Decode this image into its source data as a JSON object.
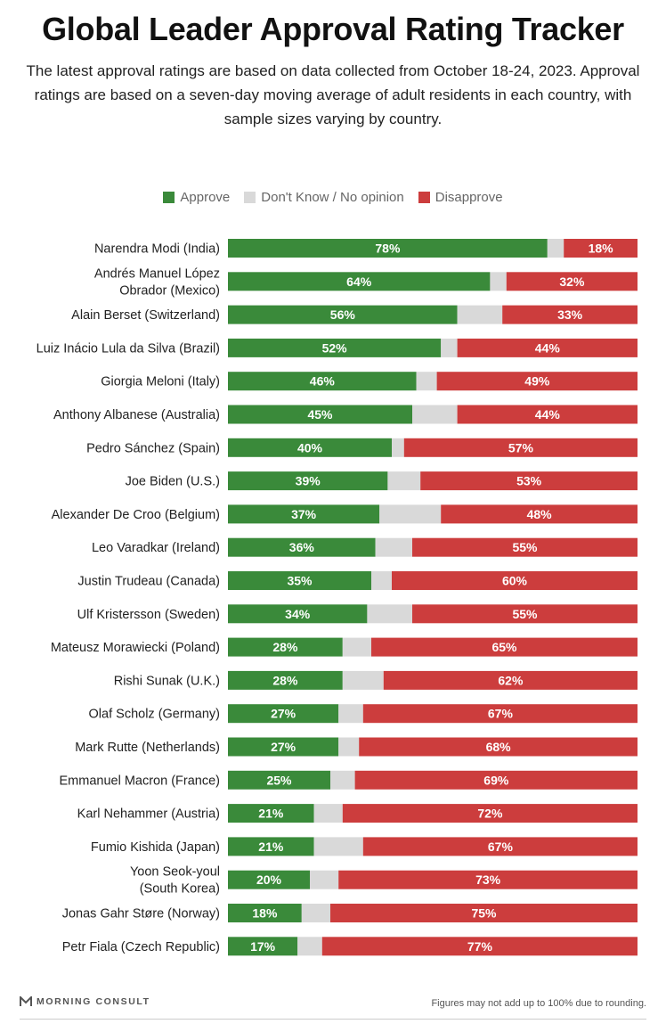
{
  "title": "Global Leader Approval Rating Tracker",
  "subtitle": "The latest approval ratings are based on data collected from October 18-24, 2023. Approval ratings are based on a seven-day moving average of adult residents in each country, with sample sizes varying by country.",
  "colors": {
    "approve": "#3a8a3a",
    "neutral": "#d9d9d9",
    "disapprove": "#cc3d3d"
  },
  "legend": [
    {
      "label": "Approve",
      "color": "#3a8a3a"
    },
    {
      "label": "Don't Know / No opinion",
      "color": "#d9d9d9"
    },
    {
      "label": "Disapprove",
      "color": "#cc3d3d"
    }
  ],
  "footer": {
    "brand": "MORNING CONSULT",
    "note": "Figures may not add up to 100% due to rounding."
  },
  "chart_data": {
    "type": "bar",
    "orientation": "horizontal",
    "stacked": true,
    "legend_position": "top-center",
    "xlim": [
      0,
      100
    ],
    "categories": [
      [
        "Narendra Modi (India)"
      ],
      [
        "Andrés Manuel López",
        "Obrador (Mexico)"
      ],
      [
        "Alain Berset (Switzerland)"
      ],
      [
        "Luiz Inácio Lula da Silva (Brazil)"
      ],
      [
        "Giorgia Meloni (Italy)"
      ],
      [
        "Anthony Albanese (Australia)"
      ],
      [
        "Pedro Sánchez (Spain)"
      ],
      [
        "Joe Biden (U.S.)"
      ],
      [
        "Alexander De Croo (Belgium)"
      ],
      [
        "Leo Varadkar (Ireland)"
      ],
      [
        "Justin Trudeau (Canada)"
      ],
      [
        "Ulf Kristersson (Sweden)"
      ],
      [
        "Mateusz Morawiecki (Poland)"
      ],
      [
        "Rishi Sunak (U.K.)"
      ],
      [
        "Olaf Scholz (Germany)"
      ],
      [
        "Mark Rutte (Netherlands)"
      ],
      [
        "Emmanuel Macron (France)"
      ],
      [
        "Karl Nehammer (Austria)"
      ],
      [
        "Fumio Kishida (Japan)"
      ],
      [
        "Yoon Seok-youl",
        "(South Korea)"
      ],
      [
        "Jonas Gahr Støre (Norway)"
      ],
      [
        "Petr Fiala (Czech Republic)"
      ]
    ],
    "series": [
      {
        "name": "Approve",
        "values": [
          78,
          64,
          56,
          52,
          46,
          45,
          40,
          39,
          37,
          36,
          35,
          34,
          28,
          28,
          27,
          27,
          25,
          21,
          21,
          20,
          18,
          17
        ]
      },
      {
        "name": "Don't Know / No opinion",
        "values": [
          4,
          4,
          11,
          4,
          5,
          11,
          3,
          8,
          15,
          9,
          5,
          11,
          7,
          10,
          6,
          5,
          6,
          7,
          12,
          7,
          7,
          6
        ]
      },
      {
        "name": "Disapprove",
        "values": [
          18,
          32,
          33,
          44,
          49,
          44,
          57,
          53,
          48,
          55,
          60,
          55,
          65,
          62,
          67,
          68,
          69,
          72,
          67,
          73,
          75,
          77
        ]
      }
    ]
  }
}
